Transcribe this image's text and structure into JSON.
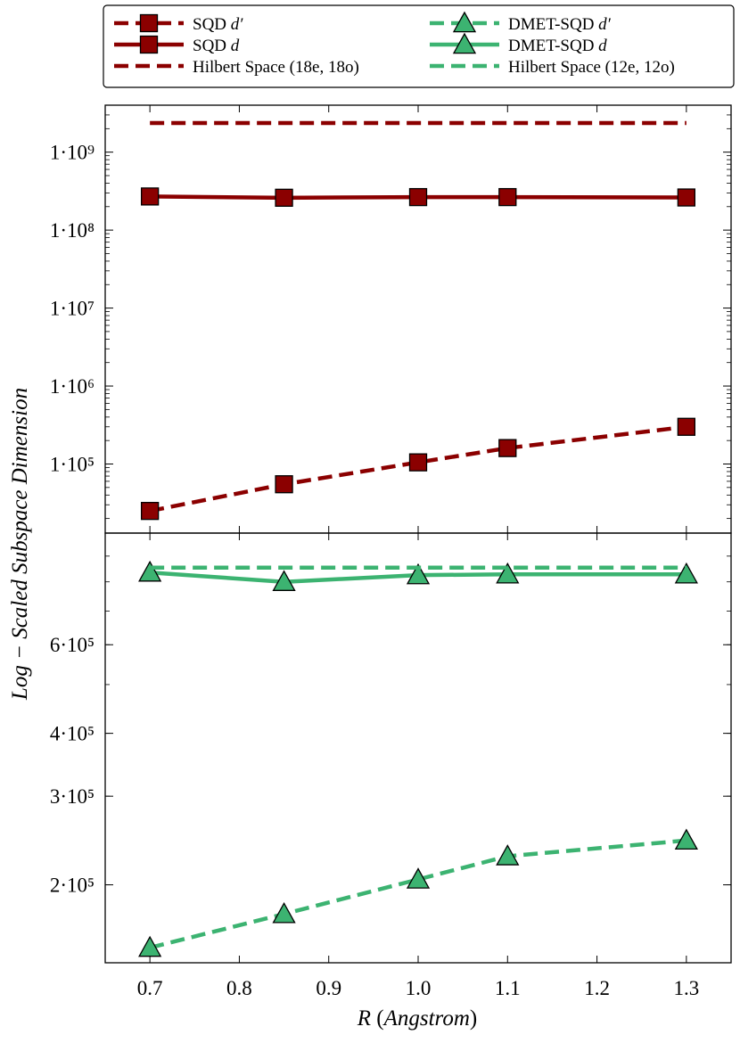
{
  "chart_data": [
    {
      "type": "line",
      "panel": "top",
      "yscale": "log",
      "ylim": [
        13000,
        4000000000
      ],
      "xlim": [
        0.65,
        1.35
      ],
      "yticks": [
        {
          "value": 100000,
          "label": "1·10⁵"
        },
        {
          "value": 1000000,
          "label": "1·10⁶"
        },
        {
          "value": 10000000,
          "label": "1·10⁷"
        },
        {
          "value": 100000000,
          "label": "1·10⁸"
        },
        {
          "value": 1000000000,
          "label": "1·10⁹"
        }
      ],
      "grid": false,
      "series": [
        {
          "name": "SQD d′",
          "style": "dashed",
          "marker": "square",
          "color": "#8b0000",
          "x": [
            0.7,
            0.85,
            1.0,
            1.1,
            1.3
          ],
          "y": [
            25000,
            55000,
            105000,
            160000,
            300000
          ]
        },
        {
          "name": "SQD d",
          "style": "solid",
          "marker": "square",
          "color": "#8b0000",
          "x": [
            0.7,
            0.85,
            1.0,
            1.1,
            1.3
          ],
          "y": [
            270000000,
            260000000,
            265000000,
            265000000,
            262000000
          ]
        },
        {
          "name": "Hilbert Space (18e, 18o)",
          "style": "dashed",
          "marker": "none",
          "color": "#8b0000",
          "x": [
            0.7,
            1.3
          ],
          "y": [
            2363904400,
            2363904400
          ]
        }
      ]
    },
    {
      "type": "line",
      "panel": "bottom",
      "yscale": "log",
      "ylim": [
        140000,
        1000000
      ],
      "xlim": [
        0.65,
        1.35
      ],
      "yticks": [
        {
          "value": 200000,
          "label": "2·10⁵"
        },
        {
          "value": 300000,
          "label": "3·10⁵"
        },
        {
          "value": 400000,
          "label": "4·10⁵"
        },
        {
          "value": 600000,
          "label": "6·10⁵"
        }
      ],
      "grid": false,
      "series": [
        {
          "name": "DMET-SQD d′",
          "style": "dashed",
          "marker": "triangle",
          "color": "#3cb371",
          "x": [
            0.7,
            0.85,
            1.0,
            1.1,
            1.3
          ],
          "y": [
            150000,
            175000,
            205000,
            228000,
            245000
          ]
        },
        {
          "name": "DMET-SQD d",
          "style": "solid",
          "marker": "triangle",
          "color": "#3cb371",
          "x": [
            0.7,
            0.85,
            1.0,
            1.1,
            1.3
          ],
          "y": [
            835000,
            800000,
            825000,
            828000,
            828000
          ]
        },
        {
          "name": "Hilbert Space (12e, 12o)",
          "style": "dashed",
          "marker": "none",
          "color": "#3cb371",
          "x": [
            0.7,
            1.3
          ],
          "y": [
            853776,
            853776
          ]
        }
      ]
    }
  ],
  "xticks": [
    "0.7",
    "0.8",
    "0.9",
    "1.0",
    "1.1",
    "1.2",
    "1.3"
  ],
  "xlabel_var": "R",
  "xlabel_unit": "Angstrom",
  "ylabel": "Log − Scaled Subspace Dimension",
  "legend": {
    "placement": "top",
    "items": [
      {
        "label_main": "SQD ",
        "label_var": "d′",
        "style": "dashed",
        "marker": "square",
        "color": "#8b0000"
      },
      {
        "label_main": "SQD ",
        "label_var": "d",
        "style": "solid",
        "marker": "square",
        "color": "#8b0000"
      },
      {
        "label_main": "Hilbert Space (18e, 18o)",
        "label_var": "",
        "style": "dashed",
        "marker": "none",
        "color": "#8b0000"
      },
      {
        "label_main": "DMET-SQD ",
        "label_var": "d′",
        "style": "dashed",
        "marker": "triangle",
        "color": "#3cb371"
      },
      {
        "label_main": "DMET-SQD ",
        "label_var": "d",
        "style": "solid",
        "marker": "triangle",
        "color": "#3cb371"
      },
      {
        "label_main": "Hilbert Space (12e, 12o)",
        "label_var": "",
        "style": "dashed",
        "marker": "none",
        "color": "#3cb371"
      }
    ]
  }
}
